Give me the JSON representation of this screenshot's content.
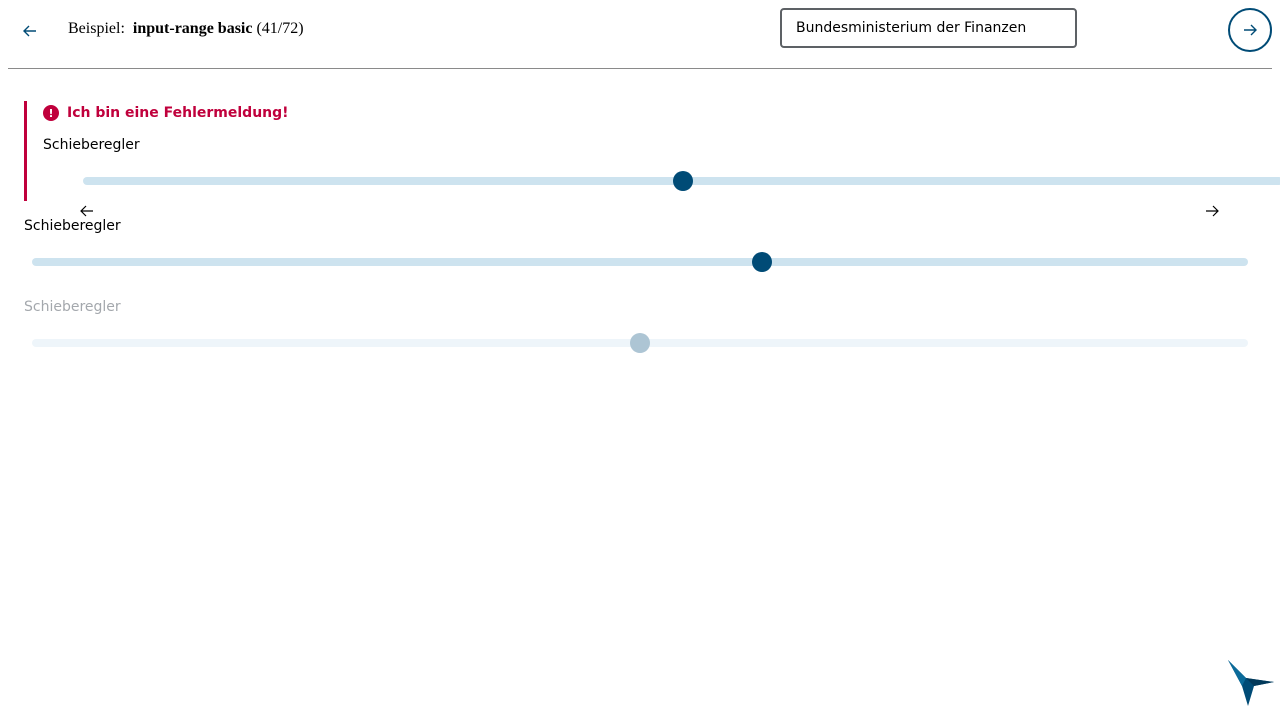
{
  "header": {
    "prefix": "Beispiel:",
    "example_name": "input-range basic",
    "counter": "(41/72)",
    "select_value": "Bundesministerium der Finanzen"
  },
  "error_group": {
    "error_message": "Ich bin eine Fehlermeldung!",
    "label": "Schieberegler",
    "value_percent": 50
  },
  "slider_2": {
    "label": "Schieberegler",
    "value_percent": 60
  },
  "slider_3": {
    "label": "Schieberegler",
    "value_percent": 50,
    "disabled": true
  },
  "colors": {
    "accent": "#004b76",
    "error": "#c0003c",
    "track": "#cde3ef",
    "track_disabled": "#eef5fa",
    "thumb_disabled": "#adc5d4"
  },
  "icons": {
    "back": "arrow-left-icon",
    "next": "arrow-right-icon",
    "error": "exclamation-circle-icon",
    "logo": "kolibri-bird-icon"
  }
}
